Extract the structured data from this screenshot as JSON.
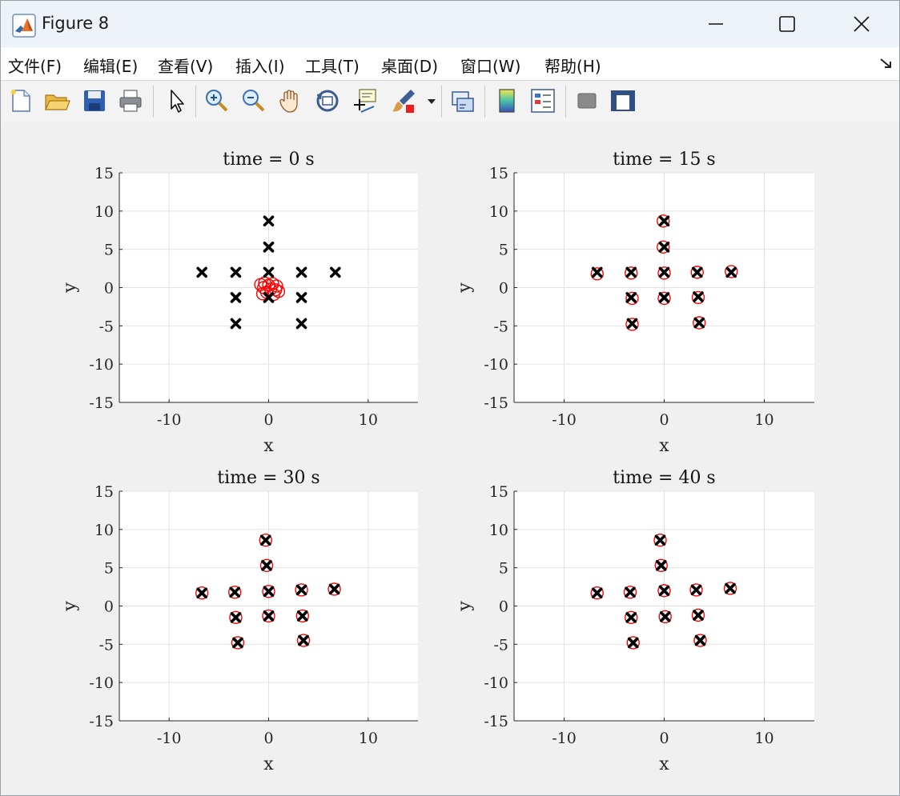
{
  "window": {
    "title": "Figure 8",
    "app_icon": "matlab-icon",
    "controls": [
      "minimize-icon",
      "maximize-icon",
      "close-icon"
    ]
  },
  "menubar": {
    "items": [
      {
        "label": "文件(F)",
        "mnemonic": "F"
      },
      {
        "label": "编辑(E)",
        "mnemonic": "E"
      },
      {
        "label": "查看(V)",
        "mnemonic": "V"
      },
      {
        "label": "插入(I)",
        "mnemonic": "I"
      },
      {
        "label": "工具(T)",
        "mnemonic": "T"
      },
      {
        "label": "桌面(D)",
        "mnemonic": "D"
      },
      {
        "label": "窗口(W)",
        "mnemonic": "W"
      },
      {
        "label": "帮助(H)",
        "mnemonic": "H"
      }
    ],
    "expand_icon": "dock-arrow-icon"
  },
  "toolbar": {
    "buttons": [
      "new-figure-icon",
      "open-file-icon",
      "save-icon",
      "print-icon",
      "edit-plot-pointer-icon",
      "zoom-in-icon",
      "zoom-out-icon",
      "pan-hand-icon",
      "rotate-3d-icon",
      "data-cursor-icon",
      "brush-icon",
      "brush-dropdown-icon",
      "link-plot-icon",
      "colorbar-icon",
      "legend-icon",
      "hide-plot-tools-icon",
      "show-plot-tools-icon"
    ]
  },
  "colors": {
    "crosses": "#000000",
    "circles": "#ff0000",
    "grid": "#e2e2e2"
  },
  "chart_data": [
    {
      "type": "scatter",
      "title": "time = 0 s",
      "xlabel": "x",
      "ylabel": "y",
      "xlim": [
        -15,
        15
      ],
      "ylim": [
        -15,
        15
      ],
      "xticks": [
        -10,
        0,
        10
      ],
      "yticks": [
        -15,
        -10,
        -5,
        0,
        5,
        10,
        15
      ],
      "grid": true,
      "series": [
        {
          "marker": "x",
          "color": "#000000",
          "points": [
            [
              0,
              8.7
            ],
            [
              0,
              5.3
            ],
            [
              -6.7,
              2
            ],
            [
              -3.3,
              2
            ],
            [
              0,
              2
            ],
            [
              3.3,
              2
            ],
            [
              6.7,
              2
            ],
            [
              -3.3,
              -1.3
            ],
            [
              0,
              -1.3
            ],
            [
              3.3,
              -1.3
            ],
            [
              -3.3,
              -4.7
            ],
            [
              3.3,
              -4.7
            ]
          ]
        },
        {
          "marker": "o",
          "color": "#ff0000",
          "points": [
            [
              -0.8,
              0.4
            ],
            [
              -0.4,
              0.6
            ],
            [
              0,
              0.3
            ],
            [
              0.4,
              0.5
            ],
            [
              0.8,
              0.2
            ],
            [
              -0.5,
              0
            ],
            [
              0.2,
              -0.2
            ],
            [
              0.7,
              -0.3
            ],
            [
              1,
              -0.5
            ],
            [
              -0.6,
              -0.8
            ],
            [
              -0.2,
              -0.6
            ],
            [
              0.5,
              -0.9
            ]
          ]
        }
      ]
    },
    {
      "type": "scatter",
      "title": "time = 15 s",
      "xlabel": "x",
      "ylabel": "y",
      "xlim": [
        -15,
        15
      ],
      "ylim": [
        -15,
        15
      ],
      "xticks": [
        -10,
        0,
        10
      ],
      "yticks": [
        -15,
        -10,
        -5,
        0,
        5,
        10,
        15
      ],
      "grid": true,
      "series": [
        {
          "marker": "x",
          "color": "#000000",
          "points": [
            [
              0,
              8.7
            ],
            [
              0,
              5.3
            ],
            [
              -6.7,
              2
            ],
            [
              -3.3,
              2
            ],
            [
              0,
              2
            ],
            [
              3.3,
              2
            ],
            [
              6.7,
              2
            ],
            [
              -3.3,
              -1.3
            ],
            [
              0,
              -1.3
            ],
            [
              3.4,
              -1.2
            ],
            [
              -3.2,
              -4.7
            ],
            [
              3.5,
              -4.6
            ]
          ]
        },
        {
          "marker": "o",
          "color": "#ff0000",
          "points": [
            [
              -0.1,
              8.7
            ],
            [
              -0.1,
              5.3
            ],
            [
              -6.7,
              1.8
            ],
            [
              -3.3,
              1.9
            ],
            [
              0,
              1.9
            ],
            [
              3.3,
              2
            ],
            [
              6.7,
              2.1
            ],
            [
              -3.2,
              -1.4
            ],
            [
              0,
              -1.4
            ],
            [
              3.4,
              -1.3
            ],
            [
              -3.2,
              -4.8
            ],
            [
              3.5,
              -4.6
            ]
          ]
        }
      ]
    },
    {
      "type": "scatter",
      "title": "time = 30 s",
      "xlabel": "x",
      "ylabel": "y",
      "xlim": [
        -15,
        15
      ],
      "ylim": [
        -15,
        15
      ],
      "xticks": [
        -10,
        0,
        10
      ],
      "yticks": [
        -15,
        -10,
        -5,
        0,
        5,
        10,
        15
      ],
      "grid": true,
      "series": [
        {
          "marker": "x",
          "color": "#000000",
          "points": [
            [
              -0.3,
              8.6
            ],
            [
              -0.2,
              5.3
            ],
            [
              -6.7,
              1.7
            ],
            [
              -3.4,
              1.8
            ],
            [
              0,
              1.9
            ],
            [
              3.3,
              2.1
            ],
            [
              6.6,
              2.2
            ],
            [
              -3.3,
              -1.5
            ],
            [
              0,
              -1.3
            ],
            [
              3.4,
              -1.3
            ],
            [
              -3.1,
              -4.8
            ],
            [
              3.5,
              -4.5
            ]
          ]
        },
        {
          "marker": "o",
          "color": "#ff0000",
          "points": [
            [
              -0.3,
              8.6
            ],
            [
              -0.2,
              5.3
            ],
            [
              -6.7,
              1.7
            ],
            [
              -3.4,
              1.8
            ],
            [
              0,
              1.9
            ],
            [
              3.3,
              2.1
            ],
            [
              6.6,
              2.2
            ],
            [
              -3.3,
              -1.5
            ],
            [
              0,
              -1.3
            ],
            [
              3.4,
              -1.3
            ],
            [
              -3.1,
              -4.8
            ],
            [
              3.5,
              -4.5
            ]
          ]
        }
      ]
    },
    {
      "type": "scatter",
      "title": "time = 40 s",
      "xlabel": "x",
      "ylabel": "y",
      "xlim": [
        -15,
        15
      ],
      "ylim": [
        -15,
        15
      ],
      "xticks": [
        -10,
        0,
        10
      ],
      "yticks": [
        -15,
        -10,
        -5,
        0,
        5,
        10,
        15
      ],
      "grid": true,
      "series": [
        {
          "marker": "x",
          "color": "#000000",
          "points": [
            [
              -0.4,
              8.6
            ],
            [
              -0.3,
              5.3
            ],
            [
              -6.7,
              1.7
            ],
            [
              -3.4,
              1.8
            ],
            [
              0,
              2
            ],
            [
              3.2,
              2.1
            ],
            [
              6.6,
              2.3
            ],
            [
              -3.3,
              -1.5
            ],
            [
              0.1,
              -1.4
            ],
            [
              3.4,
              -1.2
            ],
            [
              -3.1,
              -4.8
            ],
            [
              3.6,
              -4.5
            ]
          ]
        },
        {
          "marker": "o",
          "color": "#ff0000",
          "points": [
            [
              -0.4,
              8.6
            ],
            [
              -0.3,
              5.3
            ],
            [
              -6.7,
              1.7
            ],
            [
              -3.4,
              1.8
            ],
            [
              0,
              2
            ],
            [
              3.2,
              2.1
            ],
            [
              6.6,
              2.3
            ],
            [
              -3.3,
              -1.5
            ],
            [
              0.1,
              -1.4
            ],
            [
              3.4,
              -1.2
            ],
            [
              -3.1,
              -4.8
            ],
            [
              3.6,
              -4.5
            ]
          ]
        }
      ]
    }
  ]
}
